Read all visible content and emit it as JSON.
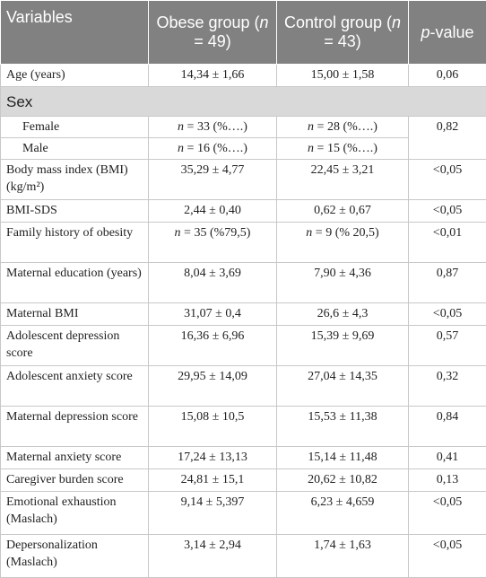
{
  "table": {
    "header": [
      "Variables",
      "Obese group (n = 49)",
      "Control group (n = 43)",
      "p-value"
    ],
    "rows": [
      [
        "Age (years)",
        "14,34 ± 1,66",
        "15,00 ± 1,58",
        "0,06"
      ],
      [
        "Sex"
      ],
      [
        "Female",
        "n = 33 (%….)",
        "n = 28 (%….)",
        "0,82"
      ],
      [
        "Male",
        "n = 16 (%….)",
        "n = 15 (%….)"
      ],
      [
        "Body mass index (BMI) (kg/m²)",
        "35,29 ± 4,77",
        "22,45 ± 3,21",
        "<0,05"
      ],
      [
        "BMI-SDS",
        "2,44 ± 0,40",
        "0,62 ± 0,67",
        "<0,05"
      ],
      [
        "Family history of obesity",
        "n = 35 (%79,5)",
        "n = 9 (% 20,5)",
        "<0,01"
      ],
      [
        "Maternal education (years)",
        "8,04 ± 3,69",
        "7,90 ± 4,36",
        "0,87"
      ],
      [
        "Maternal BMI",
        "31,07 ± 0,4",
        "26,6 ± 4,3",
        "<0,05"
      ],
      [
        "Adolescent depression score",
        "16,36 ± 6,96",
        "15,39 ± 9,69",
        "0,57"
      ],
      [
        "Adolescent anxiety score",
        "29,95 ± 14,09",
        "27,04 ± 14,35",
        "0,32"
      ],
      [
        "Maternal depression score",
        "15,08 ± 10,5",
        "15,53 ± 11,38",
        "0,84"
      ],
      [
        "Maternal anxiety score",
        "17,24 ± 13,13",
        "15,14 ± 11,48",
        "0,41"
      ],
      [
        "Caregiver burden score",
        "24,81 ± 15,1",
        "20,62 ± 10,82",
        "0,13"
      ],
      [
        "Emotional exhaustion (Maslach)",
        "9,14 ± 5,397",
        "6,23 ± 4,659",
        "<0,05"
      ],
      [
        "Depersonalization (Maslach)",
        "3,14 ± 2,94",
        "1,74 ± 1,63",
        "<0,05"
      ]
    ]
  }
}
